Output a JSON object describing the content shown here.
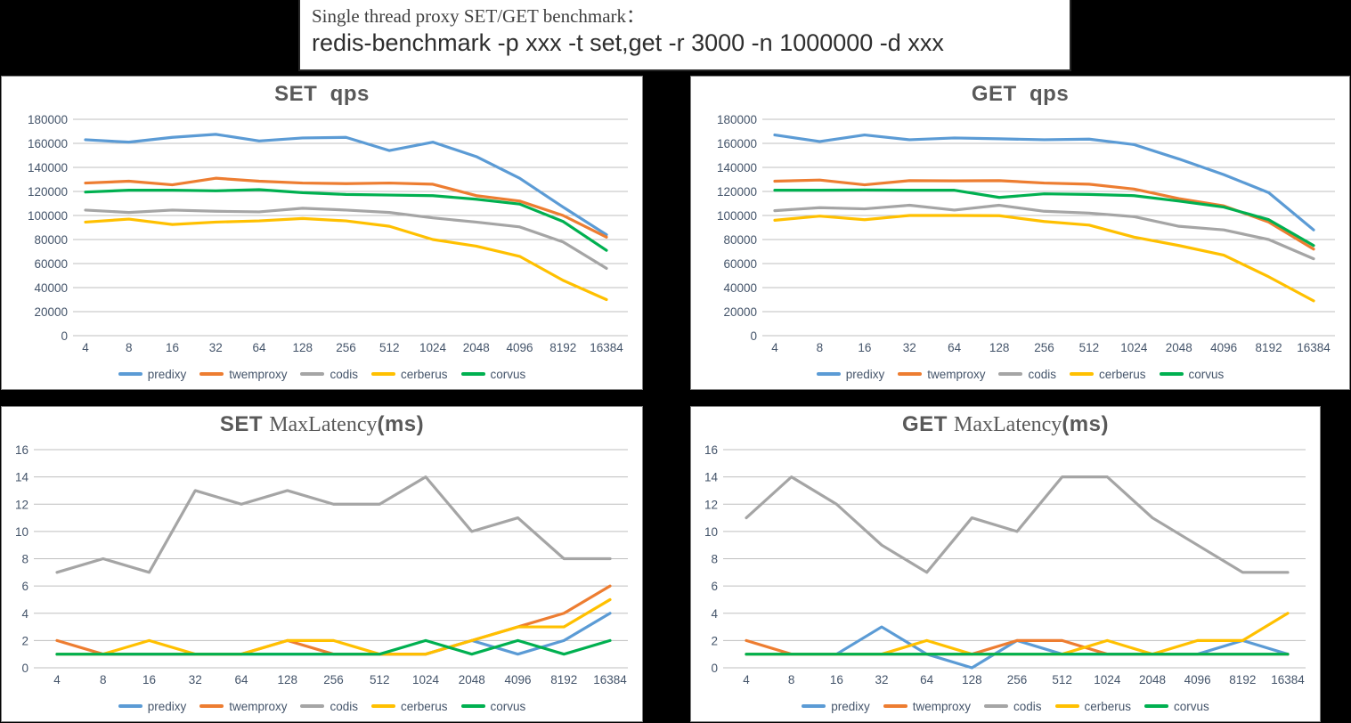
{
  "header": {
    "line1": "Single thread proxy SET/GET benchmark：",
    "line2": "redis-benchmark -p xxx -t set,get -r 3000 -n 1000000 -d xxx"
  },
  "colors": {
    "predixy": "#5B9BD5",
    "twemproxy": "#ED7D31",
    "codis": "#A5A5A5",
    "cerberus": "#FFC000",
    "corvus": "#00B050",
    "grid": "#BFBFBF",
    "axis_text": "#44546A",
    "title_text": "#595959",
    "panel_border": "#7F7F7F",
    "page_background": "#000000"
  },
  "legend": [
    "predixy",
    "twemproxy",
    "codis",
    "cerberus",
    "corvus"
  ],
  "chart_data": [
    {
      "id": "set-qps",
      "type": "line",
      "title_seg1": "SET ",
      "title_seg2": "",
      "title_seg3": " qps",
      "grid": true,
      "legend_position": "bottom",
      "ylim": [
        0,
        180000
      ],
      "ystep": 20000,
      "categories": [
        "4",
        "8",
        "16",
        "32",
        "64",
        "128",
        "256",
        "512",
        "1024",
        "2048",
        "4096",
        "8192",
        "16384"
      ],
      "series": [
        {
          "name": "predixy",
          "color": "#5B9BD5",
          "values": [
            163000,
            161000,
            165000,
            167500,
            162000,
            164500,
            165000,
            154000,
            161000,
            149000,
            131000,
            107000,
            84000
          ]
        },
        {
          "name": "twemproxy",
          "color": "#ED7D31",
          "values": [
            127000,
            128500,
            125500,
            131000,
            128500,
            127000,
            126500,
            127000,
            126000,
            116500,
            112000,
            100000,
            82000
          ]
        },
        {
          "name": "codis",
          "color": "#A5A5A5",
          "values": [
            104500,
            102500,
            104500,
            103500,
            103000,
            106000,
            104500,
            102500,
            98000,
            94500,
            90500,
            78000,
            56000
          ]
        },
        {
          "name": "cerberus",
          "color": "#FFC000",
          "values": [
            94500,
            97000,
            92500,
            94500,
            95500,
            97500,
            95500,
            91000,
            80000,
            74500,
            66000,
            46000,
            30000
          ]
        },
        {
          "name": "corvus",
          "color": "#00B050",
          "values": [
            119500,
            121000,
            121000,
            120500,
            121500,
            119000,
            117500,
            117000,
            116500,
            113500,
            109500,
            95000,
            71000
          ]
        }
      ]
    },
    {
      "id": "get-qps",
      "type": "line",
      "title_seg1": "GET ",
      "title_seg2": "",
      "title_seg3": " qps",
      "grid": true,
      "legend_position": "bottom",
      "ylim": [
        0,
        180000
      ],
      "ystep": 20000,
      "categories": [
        "4",
        "8",
        "16",
        "32",
        "64",
        "128",
        "256",
        "512",
        "1024",
        "2048",
        "4096",
        "8192",
        "16384"
      ],
      "series": [
        {
          "name": "predixy",
          "color": "#5B9BD5",
          "values": [
            167000,
            161500,
            167000,
            163000,
            164500,
            163800,
            163000,
            163500,
            159000,
            147000,
            134000,
            119000,
            88000
          ]
        },
        {
          "name": "twemproxy",
          "color": "#ED7D31",
          "values": [
            128500,
            129500,
            125500,
            129000,
            128800,
            129000,
            127000,
            126000,
            122000,
            114000,
            108000,
            94500,
            72000
          ]
        },
        {
          "name": "codis",
          "color": "#A5A5A5",
          "values": [
            104000,
            106500,
            105500,
            108500,
            104500,
            108500,
            103500,
            102000,
            99000,
            91000,
            88000,
            80000,
            64000
          ]
        },
        {
          "name": "cerberus",
          "color": "#FFC000",
          "values": [
            96000,
            99500,
            96500,
            100000,
            100000,
            99800,
            95000,
            92000,
            82000,
            75000,
            67000,
            49000,
            29000
          ]
        },
        {
          "name": "corvus",
          "color": "#00B050",
          "values": [
            121000,
            121000,
            121200,
            121000,
            121000,
            115000,
            118000,
            117500,
            116500,
            112000,
            107000,
            96500,
            75000
          ]
        }
      ]
    },
    {
      "id": "set-maxlatency",
      "type": "line",
      "title_seg1": "SET ",
      "title_seg2": "MaxLatency",
      "title_seg3": "(ms)",
      "grid": true,
      "legend_position": "bottom",
      "ylim": [
        0,
        16
      ],
      "ystep": 2,
      "categories": [
        "4",
        "8",
        "16",
        "32",
        "64",
        "128",
        "256",
        "512",
        "1024",
        "2048",
        "4096",
        "8192",
        "16384"
      ],
      "series": [
        {
          "name": "predixy",
          "color": "#5B9BD5",
          "values": [
            1,
            1,
            1,
            1,
            1,
            1,
            1,
            1,
            1,
            2,
            1,
            2,
            4
          ]
        },
        {
          "name": "twemproxy",
          "color": "#ED7D31",
          "values": [
            2,
            1,
            1,
            1,
            1,
            2,
            1,
            1,
            1,
            2,
            3,
            4,
            6
          ]
        },
        {
          "name": "codis",
          "color": "#A5A5A5",
          "values": [
            7,
            8,
            7,
            13,
            12,
            13,
            12,
            12,
            14,
            10,
            11,
            8,
            8
          ]
        },
        {
          "name": "cerberus",
          "color": "#FFC000",
          "values": [
            1,
            1,
            2,
            1,
            1,
            2,
            2,
            1,
            1,
            2,
            3,
            3,
            5
          ]
        },
        {
          "name": "corvus",
          "color": "#00B050",
          "values": [
            1,
            1,
            1,
            1,
            1,
            1,
            1,
            1,
            2,
            1,
            2,
            1,
            2
          ]
        }
      ]
    },
    {
      "id": "get-maxlatency",
      "type": "line",
      "title_seg1": "GET ",
      "title_seg2": "MaxLatency",
      "title_seg3": "(ms)",
      "grid": true,
      "legend_position": "bottom",
      "ylim": [
        0,
        16
      ],
      "ystep": 2,
      "categories": [
        "4",
        "8",
        "16",
        "32",
        "64",
        "128",
        "256",
        "512",
        "1024",
        "2048",
        "4096",
        "8192",
        "16384"
      ],
      "series": [
        {
          "name": "predixy",
          "color": "#5B9BD5",
          "values": [
            1,
            1,
            1,
            3,
            1,
            0,
            2,
            1,
            1,
            1,
            1,
            2,
            1
          ]
        },
        {
          "name": "twemproxy",
          "color": "#ED7D31",
          "values": [
            2,
            1,
            1,
            1,
            1,
            1,
            2,
            2,
            1,
            1,
            1,
            1,
            1
          ]
        },
        {
          "name": "codis",
          "color": "#A5A5A5",
          "values": [
            11,
            14,
            12,
            9,
            7,
            11,
            10,
            14,
            14,
            11,
            9,
            7,
            7
          ]
        },
        {
          "name": "cerberus",
          "color": "#FFC000",
          "values": [
            1,
            1,
            1,
            1,
            2,
            1,
            1,
            1,
            2,
            1,
            2,
            2,
            4
          ]
        },
        {
          "name": "corvus",
          "color": "#00B050",
          "values": [
            1,
            1,
            1,
            1,
            1,
            1,
            1,
            1,
            1,
            1,
            1,
            1,
            1
          ]
        }
      ]
    }
  ]
}
